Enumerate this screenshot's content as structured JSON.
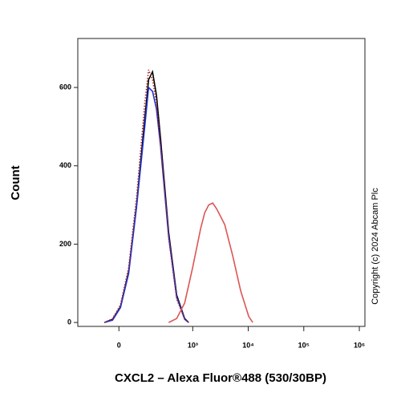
{
  "chart_data": {
    "type": "histogram-overlay",
    "x_label": "CXCL2 – Alexa Fluor®488 (530/30BP)",
    "y_label": "Count",
    "copyright": "Copyright (c) 2024 Abcam Plc",
    "xscale": {
      "type": "biexponential",
      "linear_width": 94
    },
    "xlim": [
      -250,
      1260000
    ],
    "ylim": [
      -10,
      725
    ],
    "xticks": [
      0,
      {
        "value": 1000,
        "label": "10³"
      },
      {
        "value": 10000,
        "label": "10⁴"
      },
      {
        "value": 100000,
        "label": "10⁵"
      },
      {
        "value": 1000000,
        "label": "10⁶"
      }
    ],
    "yticks": [
      0,
      200,
      400,
      600
    ],
    "series": [
      {
        "color": "#000000",
        "linestyle": "solid",
        "x": [
          -60,
          -25,
          6,
          39,
          75,
          121,
          147,
          178,
          213,
          256,
          363,
          510,
          714,
          843
        ],
        "values": [
          0,
          8,
          40,
          130,
          300,
          520,
          620,
          640,
          580,
          470,
          230,
          70,
          10,
          0
        ]
      },
      {
        "color": "#2233cc",
        "linestyle": "solid",
        "x": [
          -60,
          -25,
          6,
          39,
          75,
          121,
          147,
          178,
          213,
          256,
          363,
          510,
          714,
          843
        ],
        "values": [
          0,
          6,
          38,
          125,
          295,
          500,
          600,
          590,
          545,
          450,
          220,
          65,
          8,
          0
        ]
      },
      {
        "color": "#a52a2a",
        "linestyle": "dotted",
        "x": [
          -60,
          -25,
          6,
          39,
          75,
          121,
          147,
          178,
          213,
          256,
          363,
          510,
          714,
          843
        ],
        "values": [
          0,
          10,
          45,
          140,
          320,
          560,
          645,
          620,
          560,
          450,
          215,
          60,
          8,
          0
        ]
      },
      {
        "color": "#dd5555",
        "linestyle": "solid",
        "x": [
          363,
          510,
          714,
          996,
          1391,
          1643,
          1940,
          2290,
          2705,
          3195,
          3773,
          5260,
          7330,
          10220,
          12070
        ],
        "values": [
          0,
          10,
          50,
          140,
          240,
          280,
          300,
          305,
          290,
          270,
          250,
          170,
          80,
          15,
          0
        ]
      }
    ]
  }
}
